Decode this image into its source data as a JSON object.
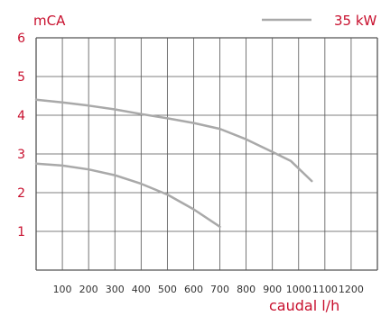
{
  "chart_data": {
    "type": "line",
    "ylabel": "mCA",
    "xlabel": "caudal l/h",
    "x_ticks": [
      100,
      200,
      300,
      400,
      500,
      600,
      700,
      800,
      900,
      1000,
      1100,
      1200
    ],
    "y_ticks": [
      1,
      2,
      3,
      4,
      5,
      6
    ],
    "xlim": [
      0,
      1300
    ],
    "ylim": [
      0,
      6
    ],
    "grid": true,
    "legend_position": "top-right",
    "series": [
      {
        "name": "35 kW",
        "color": "#a9a9a9",
        "points": [
          [
            0,
            4.4
          ],
          [
            100,
            4.33
          ],
          [
            200,
            4.25
          ],
          [
            300,
            4.15
          ],
          [
            400,
            4.03
          ],
          [
            500,
            3.92
          ],
          [
            600,
            3.8
          ],
          [
            700,
            3.65
          ],
          [
            800,
            3.38
          ],
          [
            900,
            3.05
          ],
          [
            970,
            2.82
          ],
          [
            1050,
            2.3
          ]
        ]
      },
      {
        "color": "#a9a9a9",
        "points": [
          [
            0,
            2.75
          ],
          [
            100,
            2.7
          ],
          [
            200,
            2.6
          ],
          [
            300,
            2.45
          ],
          [
            400,
            2.23
          ],
          [
            500,
            1.95
          ],
          [
            600,
            1.57
          ],
          [
            700,
            1.12
          ]
        ]
      }
    ]
  },
  "colors": {
    "accent": "#c8102e",
    "grid": "#555555",
    "line": "#a9a9a9",
    "tick_x": "#333333"
  }
}
